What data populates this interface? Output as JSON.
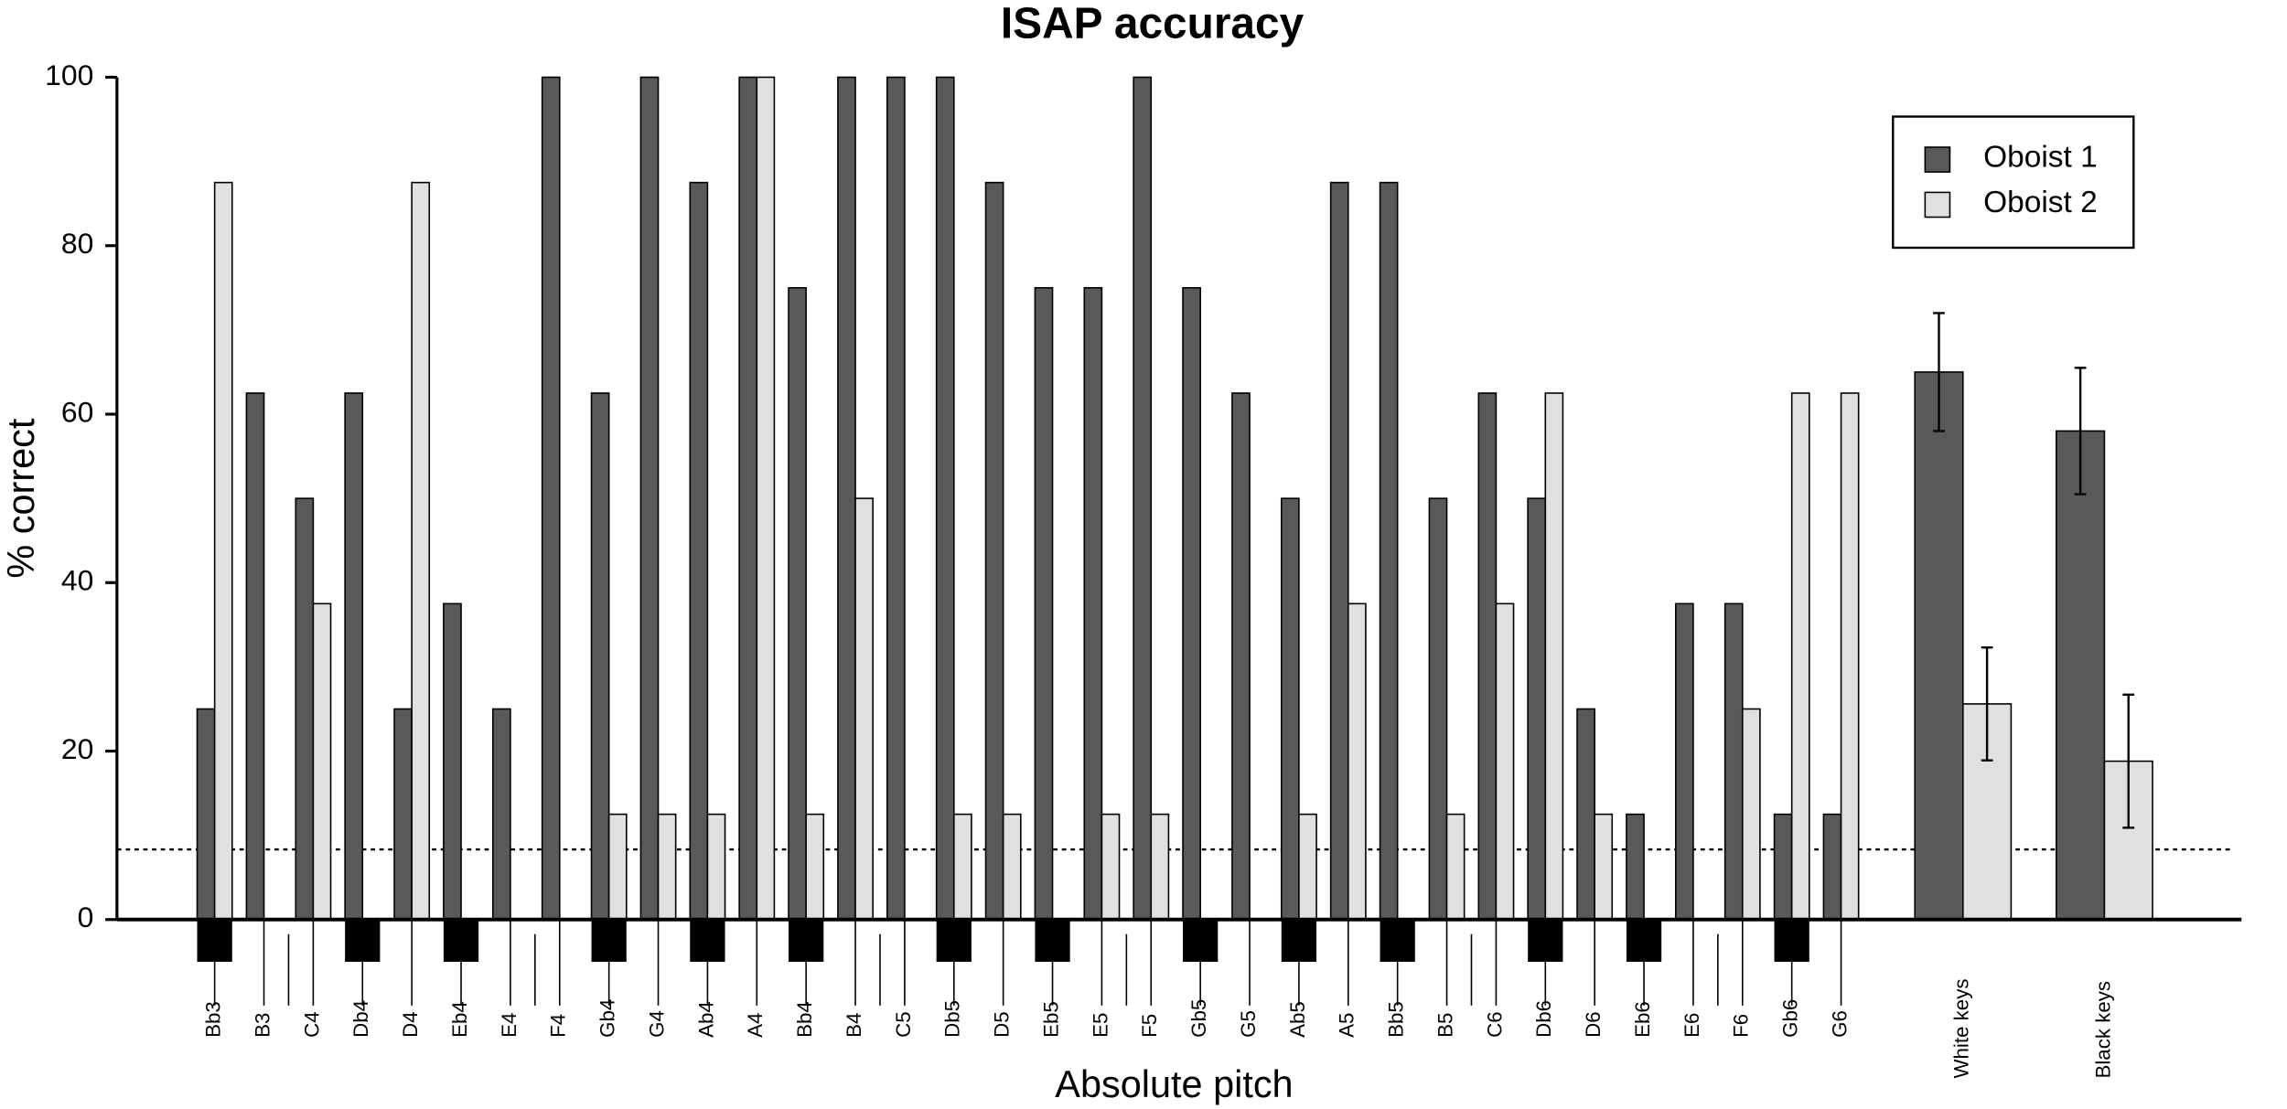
{
  "chart_data": {
    "type": "bar",
    "title": "ISAP accuracy",
    "x_label": "Absolute pitch",
    "y_label": "% correct",
    "categories": [
      "Bb3",
      "B3",
      "C4",
      "Db4",
      "D4",
      "Eb4",
      "E4",
      "F4",
      "Gb4",
      "G4",
      "Ab4",
      "A4",
      "Bb4",
      "B4",
      "C5",
      "Db5",
      "D5",
      "Eb5",
      "E5",
      "F5",
      "Gb5",
      "G5",
      "Ab5",
      "A5",
      "Bb5",
      "B5",
      "C6",
      "Db6",
      "D6",
      "Eb6",
      "E6",
      "F6",
      "Gb6",
      "G6",
      "White keys",
      "Black keys"
    ],
    "series": [
      {
        "name": "Oboist 1",
        "color": "#595959",
        "values": [
          25,
          62.5,
          50,
          62.5,
          25,
          37.5,
          25,
          100,
          62.5,
          100,
          87.5,
          100,
          75,
          100,
          100,
          100,
          87.5,
          75,
          75,
          100,
          75,
          62.5,
          50,
          87.5,
          87.5,
          50,
          62.5,
          50,
          25,
          12.5,
          37.5,
          37.5,
          12.5,
          12.5,
          65,
          58
        ],
        "errors": [
          null,
          null,
          null,
          null,
          null,
          null,
          null,
          null,
          null,
          null,
          null,
          null,
          null,
          null,
          null,
          null,
          null,
          null,
          null,
          null,
          null,
          null,
          null,
          null,
          null,
          null,
          null,
          null,
          null,
          null,
          null,
          null,
          null,
          null,
          7,
          7.5
        ]
      },
      {
        "name": "Oboist 2",
        "color": "#e0e0e0",
        "values": [
          87.5,
          0,
          37.5,
          0,
          87.5,
          0,
          0,
          0,
          12.5,
          12.5,
          12.5,
          100,
          12.5,
          50,
          0,
          12.5,
          12.5,
          0,
          12.5,
          12.5,
          0,
          0,
          12.5,
          37.5,
          0,
          12.5,
          37.5,
          62.5,
          12.5,
          0,
          0,
          25,
          62.5,
          62.5,
          25.6,
          18.8
        ],
        "errors": [
          null,
          null,
          null,
          null,
          null,
          null,
          null,
          null,
          null,
          null,
          null,
          null,
          null,
          null,
          null,
          null,
          null,
          null,
          null,
          null,
          null,
          null,
          null,
          null,
          null,
          null,
          null,
          null,
          null,
          null,
          null,
          null,
          null,
          null,
          6.7,
          7.9
        ]
      }
    ],
    "ylim": [
      0,
      100
    ],
    "yticks": [
      0,
      20,
      40,
      60,
      80,
      100
    ],
    "reference_line": 8.33,
    "legend": "top-right"
  }
}
